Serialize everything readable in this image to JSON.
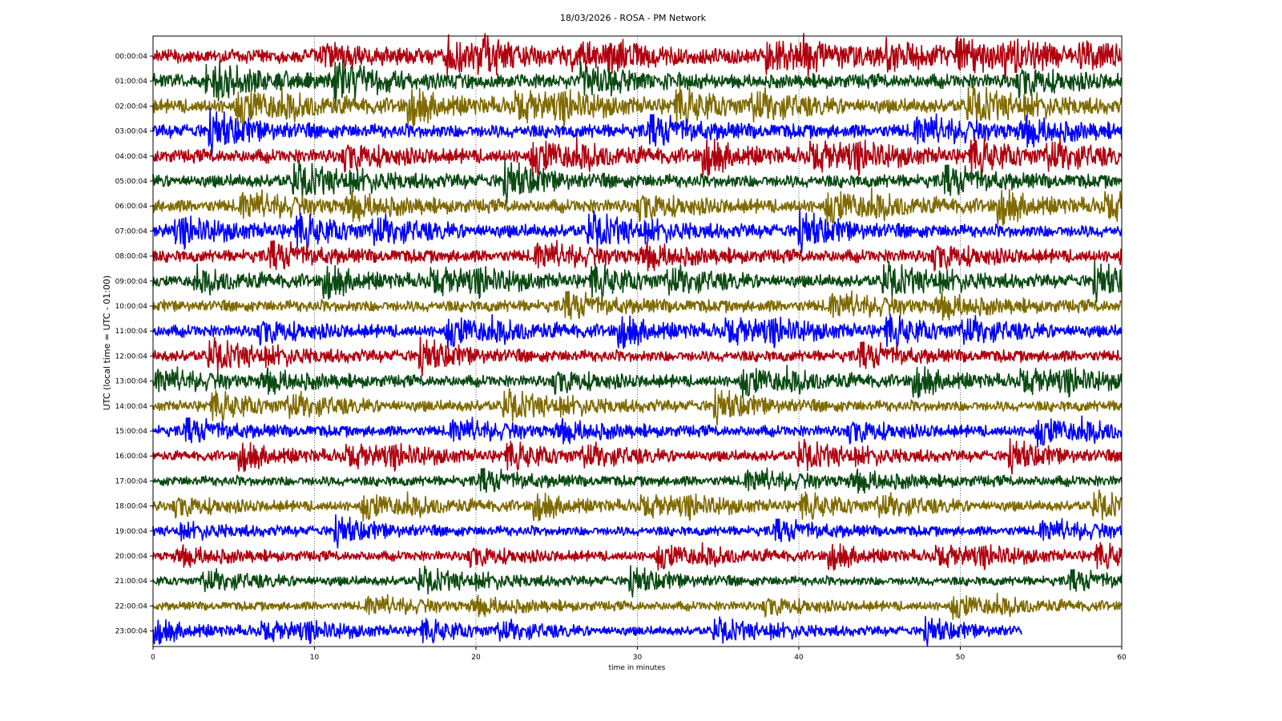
{
  "chart_data": {
    "type": "line",
    "chart_kind": "helicorder",
    "title": "18/03/2026 - ROSA - PM Network",
    "xlabel": "time in minutes",
    "ylabel": "UTC (local time = UTC - 01:00)",
    "xlim": [
      0,
      60
    ],
    "xticks": [
      "0",
      "10",
      "20",
      "30",
      "40",
      "50",
      "60"
    ],
    "grid": {
      "x": true,
      "y": false,
      "style": "dotted"
    },
    "colors": [
      "#b0000f",
      "#0a4a12",
      "#7f6a00",
      "#0000ff"
    ],
    "rows": [
      {
        "label": "00:00:04",
        "end_minute": 60
      },
      {
        "label": "01:00:04",
        "end_minute": 60
      },
      {
        "label": "02:00:04",
        "end_minute": 60
      },
      {
        "label": "03:00:04",
        "end_minute": 60
      },
      {
        "label": "04:00:04",
        "end_minute": 60
      },
      {
        "label": "05:00:04",
        "end_minute": 60
      },
      {
        "label": "06:00:04",
        "end_minute": 60
      },
      {
        "label": "07:00:04",
        "end_minute": 60
      },
      {
        "label": "08:00:04",
        "end_minute": 60
      },
      {
        "label": "09:00:04",
        "end_minute": 60
      },
      {
        "label": "10:00:04",
        "end_minute": 60
      },
      {
        "label": "11:00:04",
        "end_minute": 60
      },
      {
        "label": "12:00:04",
        "end_minute": 60
      },
      {
        "label": "13:00:04",
        "end_minute": 60
      },
      {
        "label": "14:00:04",
        "end_minute": 60
      },
      {
        "label": "15:00:04",
        "end_minute": 60
      },
      {
        "label": "16:00:04",
        "end_minute": 60
      },
      {
        "label": "17:00:04",
        "end_minute": 60
      },
      {
        "label": "18:00:04",
        "end_minute": 60
      },
      {
        "label": "19:00:04",
        "end_minute": 60
      },
      {
        "label": "20:00:04",
        "end_minute": 60
      },
      {
        "label": "21:00:04",
        "end_minute": 60
      },
      {
        "label": "22:00:04",
        "end_minute": 60
      },
      {
        "label": "23:00:04",
        "end_minute": 53.8
      }
    ]
  }
}
